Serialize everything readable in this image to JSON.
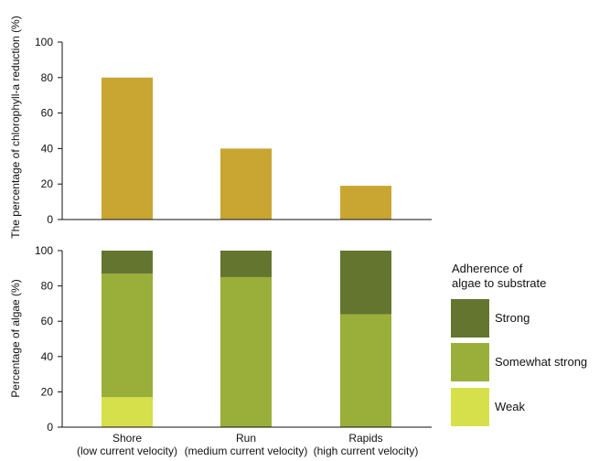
{
  "chart_data": [
    {
      "type": "bar",
      "categories": [
        "Shore",
        "Run",
        "Rapids"
      ],
      "values": [
        80,
        40,
        19
      ],
      "ylabel": "The percentage of chlorophyll-a reduction (%)",
      "ylim": [
        0,
        100
      ],
      "yticks": [
        "0",
        "20",
        "40",
        "60",
        "80",
        "100"
      ],
      "color": "#c9a532"
    },
    {
      "type": "bar",
      "stacked": true,
      "categories": [
        "Shore",
        "Run",
        "Rapids"
      ],
      "category_sublabels": [
        "(low current velocity)",
        "(medium current velocity)",
        "(high current velocity)"
      ],
      "ylabel": "Percentage of algae (%)",
      "ylim": [
        0,
        100
      ],
      "yticks": [
        "0",
        "20",
        "40",
        "60",
        "80",
        "100"
      ],
      "legend_title": [
        "Adherence of",
        "algae to substrate"
      ],
      "legend_position": "right",
      "series": [
        {
          "name": "Weak",
          "values": [
            17,
            0,
            0
          ],
          "color": "#d6e04a"
        },
        {
          "name": "Somewhat strong",
          "values": [
            70,
            85,
            64
          ],
          "color": "#9aae3a"
        },
        {
          "name": "Strong",
          "values": [
            13,
            15,
            36
          ],
          "color": "#647530"
        }
      ]
    }
  ]
}
